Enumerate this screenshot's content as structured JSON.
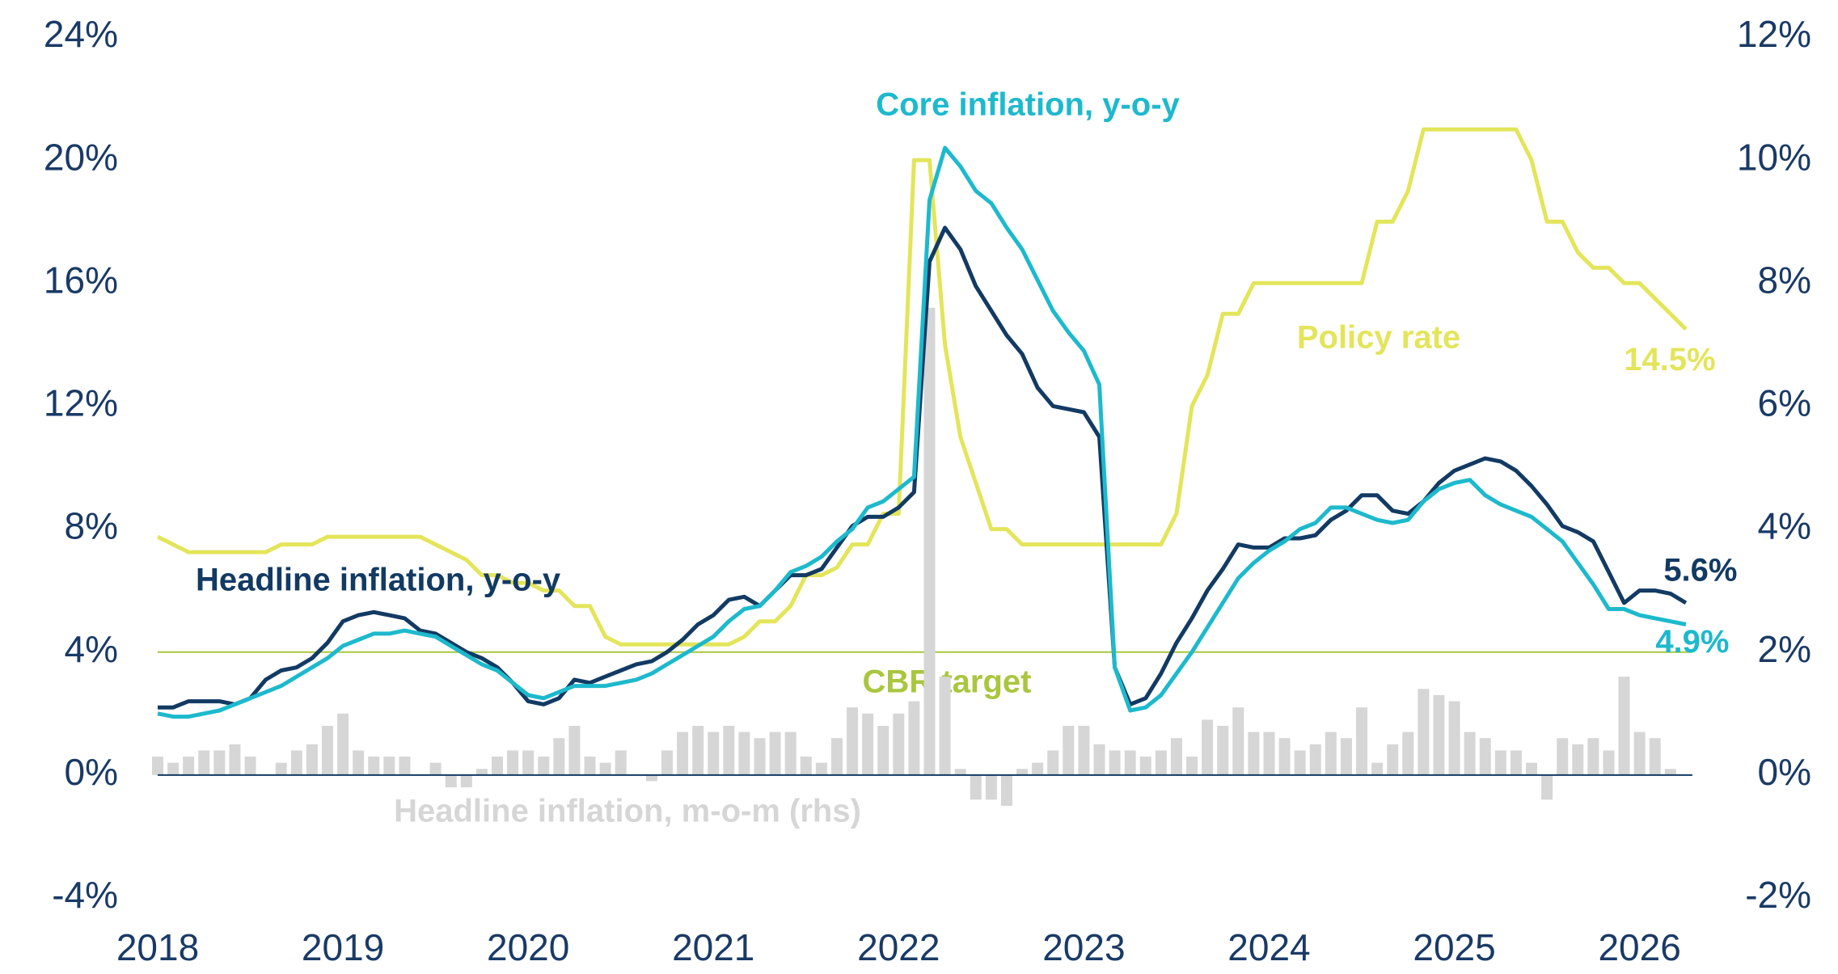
{
  "chart_data": {
    "type": "line",
    "categories": [
      "2018",
      null,
      null,
      null,
      null,
      null,
      null,
      null,
      null,
      null,
      null,
      null,
      "2019",
      null,
      null,
      null,
      null,
      null,
      null,
      null,
      null,
      null,
      null,
      null,
      "2020",
      null,
      null,
      null,
      null,
      null,
      null,
      null,
      null,
      null,
      null,
      null,
      "2021",
      null,
      null,
      null,
      null,
      null,
      null,
      null,
      null,
      null,
      null,
      null,
      "2022",
      null,
      null,
      null,
      null,
      null,
      null,
      null,
      null,
      null,
      null,
      null,
      "2023",
      null,
      null,
      null,
      null,
      null,
      null,
      null,
      null,
      null,
      null,
      null,
      "2024",
      null,
      null,
      null,
      null,
      null,
      null,
      null,
      null,
      null,
      null,
      null,
      "2025",
      null,
      null,
      null,
      null,
      null,
      null,
      null,
      null,
      null,
      null,
      null,
      "2026",
      null,
      null,
      null
    ],
    "ylim": [
      -4,
      24
    ],
    "yticks": [
      {
        "value": -4,
        "label": "-4%"
      },
      {
        "value": 0,
        "label": "0%"
      },
      {
        "value": 4,
        "label": "4%"
      },
      {
        "value": 8,
        "label": "8%"
      },
      {
        "value": 12,
        "label": "12%"
      },
      {
        "value": 16,
        "label": "16%"
      },
      {
        "value": 20,
        "label": "20%"
      },
      {
        "value": 24,
        "label": "24%"
      }
    ],
    "y2lim": [
      -2,
      12
    ],
    "y2ticks": [
      {
        "value": -2,
        "label": "-2%"
      },
      {
        "value": 0,
        "label": "0%"
      },
      {
        "value": 2,
        "label": "2%"
      },
      {
        "value": 4,
        "label": "4%"
      },
      {
        "value": 6,
        "label": "6%"
      },
      {
        "value": 8,
        "label": "8%"
      },
      {
        "value": 10,
        "label": "10%"
      },
      {
        "value": 12,
        "label": "12%"
      }
    ],
    "grid": false,
    "target": {
      "label": "CBR target",
      "value": 4,
      "color": "#a9c63e"
    },
    "series": [
      {
        "name": "Headline inflation, m-o-m (rhs)",
        "type": "bar",
        "axis": "y2",
        "color": "#d6d6d6",
        "values": [
          0.3,
          0.2,
          0.3,
          0.4,
          0.4,
          0.5,
          0.3,
          0.0,
          0.2,
          0.4,
          0.5,
          0.8,
          1.0,
          0.4,
          0.3,
          0.3,
          0.3,
          0.0,
          0.2,
          -0.2,
          -0.2,
          0.1,
          0.3,
          0.4,
          0.4,
          0.3,
          0.6,
          0.8,
          0.3,
          0.2,
          0.4,
          0.0,
          -0.1,
          0.4,
          0.7,
          0.8,
          0.7,
          0.8,
          0.7,
          0.6,
          0.7,
          0.7,
          0.3,
          0.2,
          0.6,
          1.1,
          1.0,
          0.8,
          1.0,
          1.2,
          7.6,
          1.6,
          0.1,
          -0.4,
          -0.4,
          -0.5,
          0.1,
          0.2,
          0.4,
          0.8,
          0.8,
          0.5,
          0.4,
          0.4,
          0.3,
          0.4,
          0.6,
          0.3,
          0.9,
          0.8,
          1.1,
          0.7,
          0.7,
          0.6,
          0.4,
          0.5,
          0.7,
          0.6,
          1.1,
          0.2,
          0.5,
          0.7,
          1.4,
          1.3,
          1.2,
          0.7,
          0.6,
          0.4,
          0.4,
          0.2,
          -0.4,
          0.6,
          0.5,
          0.6,
          0.4,
          1.6,
          0.7,
          0.6,
          0.1,
          null
        ]
      },
      {
        "name": "Policy rate",
        "type": "line",
        "color": "#e3e55a",
        "values": [
          7.75,
          7.5,
          7.25,
          7.25,
          7.25,
          7.25,
          7.25,
          7.25,
          7.5,
          7.5,
          7.5,
          7.75,
          7.75,
          7.75,
          7.75,
          7.75,
          7.75,
          7.75,
          7.5,
          7.25,
          7.0,
          6.5,
          6.5,
          6.25,
          6.25,
          6.0,
          6.0,
          5.5,
          5.5,
          4.5,
          4.25,
          4.25,
          4.25,
          4.25,
          4.25,
          4.25,
          4.25,
          4.25,
          4.5,
          5.0,
          5.0,
          5.5,
          6.5,
          6.5,
          6.75,
          7.5,
          7.5,
          8.5,
          8.5,
          20,
          20,
          14,
          11,
          9.5,
          8.0,
          8.0,
          7.5,
          7.5,
          7.5,
          7.5,
          7.5,
          7.5,
          7.5,
          7.5,
          7.5,
          7.5,
          8.5,
          12,
          13,
          15,
          15,
          16,
          16,
          16,
          16,
          16,
          16,
          16,
          16,
          18,
          18,
          19,
          21,
          21,
          21,
          21,
          21,
          21,
          21,
          20,
          18,
          18,
          17,
          16.5,
          16.5,
          16,
          16,
          15.5,
          15,
          14.5
        ],
        "value_labels": [
          null,
          null,
          null,
          null,
          null,
          null,
          null,
          null,
          null,
          null,
          null,
          null,
          null,
          null,
          null,
          null,
          null,
          null,
          null,
          null,
          null,
          null,
          null,
          null,
          null,
          null,
          null,
          null,
          null,
          null,
          null,
          null,
          null,
          null,
          null,
          null,
          null,
          null,
          null,
          null,
          null,
          null,
          null,
          null,
          null,
          null,
          null,
          null,
          null,
          null,
          null,
          null,
          null,
          null,
          null,
          null,
          null,
          null,
          null,
          null,
          null,
          null,
          null,
          null,
          null,
          null,
          null,
          null,
          null,
          null,
          null,
          null,
          null,
          null,
          null,
          null,
          null,
          null,
          null,
          null,
          null,
          null,
          null,
          null,
          null,
          null,
          null,
          null,
          null,
          null,
          null,
          null,
          null,
          null,
          null,
          null,
          null,
          null,
          null,
          "14.5%"
        ]
      },
      {
        "name": "Headline inflation, y-o-y",
        "type": "line",
        "color": "#123a63",
        "values": [
          2.2,
          2.2,
          2.4,
          2.4,
          2.4,
          2.3,
          2.5,
          3.1,
          3.4,
          3.5,
          3.8,
          4.3,
          5.0,
          5.2,
          5.3,
          5.2,
          5.1,
          4.7,
          4.6,
          4.3,
          4.0,
          3.8,
          3.5,
          3.0,
          2.4,
          2.3,
          2.5,
          3.1,
          3.0,
          3.2,
          3.4,
          3.6,
          3.7,
          4.0,
          4.4,
          4.9,
          5.2,
          5.7,
          5.8,
          5.5,
          6.0,
          6.5,
          6.5,
          6.7,
          7.4,
          8.1,
          8.4,
          8.4,
          8.7,
          9.2,
          16.7,
          17.8,
          17.1,
          15.9,
          15.1,
          14.3,
          13.7,
          12.6,
          12.0,
          11.9,
          11.8,
          11.0,
          3.5,
          2.3,
          2.5,
          3.3,
          4.3,
          5.1,
          6.0,
          6.7,
          7.5,
          7.4,
          7.4,
          7.7,
          7.7,
          7.8,
          8.3,
          8.6,
          9.1,
          9.1,
          8.6,
          8.5,
          8.9,
          9.5,
          9.9,
          10.1,
          10.3,
          10.2,
          9.9,
          9.4,
          8.8,
          8.1,
          7.9,
          7.6,
          6.6,
          5.6,
          6.0,
          6.0,
          5.9,
          5.6
        ],
        "value_labels": [
          null,
          null,
          null,
          null,
          null,
          null,
          null,
          null,
          null,
          null,
          null,
          null,
          null,
          null,
          null,
          null,
          null,
          null,
          null,
          null,
          null,
          null,
          null,
          null,
          null,
          null,
          null,
          null,
          null,
          null,
          null,
          null,
          null,
          null,
          null,
          null,
          null,
          null,
          null,
          null,
          null,
          null,
          null,
          null,
          null,
          null,
          null,
          null,
          null,
          null,
          null,
          null,
          null,
          null,
          null,
          null,
          null,
          null,
          null,
          null,
          null,
          null,
          null,
          null,
          null,
          null,
          null,
          null,
          null,
          null,
          null,
          null,
          null,
          null,
          null,
          null,
          null,
          null,
          null,
          null,
          null,
          null,
          null,
          null,
          null,
          null,
          null,
          null,
          null,
          null,
          null,
          null,
          null,
          null,
          null,
          null,
          null,
          null,
          null,
          "5.6%"
        ]
      },
      {
        "name": "Core inflation, y-o-y",
        "type": "line",
        "color": "#1db9cd",
        "values": [
          2.0,
          1.9,
          1.9,
          2.0,
          2.1,
          2.3,
          2.5,
          2.7,
          2.9,
          3.2,
          3.5,
          3.8,
          4.2,
          4.4,
          4.6,
          4.6,
          4.7,
          4.6,
          4.5,
          4.2,
          3.9,
          3.6,
          3.4,
          3.0,
          2.6,
          2.5,
          2.7,
          2.9,
          2.9,
          2.9,
          3.0,
          3.1,
          3.3,
          3.6,
          3.9,
          4.2,
          4.5,
          5.0,
          5.4,
          5.5,
          6.0,
          6.6,
          6.8,
          7.1,
          7.6,
          8.0,
          8.7,
          8.9,
          9.3,
          9.7,
          18.7,
          20.4,
          19.8,
          19.0,
          18.6,
          17.8,
          17.1,
          16.1,
          15.1,
          14.4,
          13.8,
          12.7,
          3.5,
          2.1,
          2.2,
          2.6,
          3.3,
          4.0,
          4.8,
          5.6,
          6.4,
          6.9,
          7.3,
          7.6,
          8.0,
          8.2,
          8.7,
          8.7,
          8.5,
          8.3,
          8.2,
          8.3,
          8.9,
          9.3,
          9.5,
          9.6,
          9.1,
          8.8,
          8.6,
          8.4,
          8.0,
          7.6,
          6.9,
          6.2,
          5.4,
          5.4,
          5.2,
          5.1,
          5.0,
          4.9
        ],
        "value_labels": [
          null,
          null,
          null,
          null,
          null,
          null,
          null,
          null,
          null,
          null,
          null,
          null,
          null,
          null,
          null,
          null,
          null,
          null,
          null,
          null,
          null,
          null,
          null,
          null,
          null,
          null,
          null,
          null,
          null,
          null,
          null,
          null,
          null,
          null,
          null,
          null,
          null,
          null,
          null,
          null,
          null,
          null,
          null,
          null,
          null,
          null,
          null,
          null,
          null,
          null,
          null,
          null,
          null,
          null,
          null,
          null,
          null,
          null,
          null,
          null,
          null,
          null,
          null,
          null,
          null,
          null,
          null,
          null,
          null,
          null,
          null,
          null,
          null,
          null,
          null,
          null,
          null,
          null,
          null,
          null,
          null,
          null,
          null,
          null,
          null,
          null,
          null,
          null,
          null,
          null,
          null,
          null,
          null,
          null,
          null,
          null,
          null,
          null,
          null,
          "4.9%"
        ]
      }
    ]
  }
}
